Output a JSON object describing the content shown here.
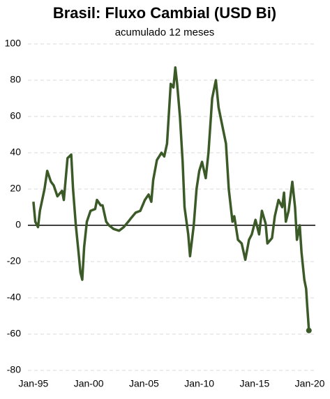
{
  "chart_data": {
    "type": "line",
    "title": "Brasil: Fluxo Cambial (USD Bi)",
    "subtitle": "acumulado 12 meses",
    "x": [
      "1995-01",
      "1995-03",
      "1995-06",
      "1995-08",
      "1996-01",
      "1996-04",
      "1996-08",
      "1996-11",
      "1997-03",
      "1997-08",
      "1997-10",
      "1998-02",
      "1998-06",
      "1998-08",
      "1998-11",
      "1999-02",
      "1999-04",
      "1999-06",
      "1999-08",
      "1999-11",
      "2000-03",
      "2000-08",
      "2000-10",
      "2001-02",
      "2001-04",
      "2001-08",
      "2001-11",
      "2002-04",
      "2002-10",
      "2003-03",
      "2003-08",
      "2003-11",
      "2004-04",
      "2004-09",
      "2005-02",
      "2005-06",
      "2005-09",
      "2005-11",
      "2006-03",
      "2006-08",
      "2006-11",
      "2007-02",
      "2007-06",
      "2007-09",
      "2007-11",
      "2008-01",
      "2008-04",
      "2008-07",
      "2008-09",
      "2009-01",
      "2009-03",
      "2009-07",
      "2009-10",
      "2010-01",
      "2010-04",
      "2010-08",
      "2010-11",
      "2011-03",
      "2011-07",
      "2011-10",
      "2012-02",
      "2012-06",
      "2012-09",
      "2013-01",
      "2013-03",
      "2013-07",
      "2013-11",
      "2014-03",
      "2014-07",
      "2014-10",
      "2015-02",
      "2015-06",
      "2015-09",
      "2016-01",
      "2016-03",
      "2016-08",
      "2016-11",
      "2017-03",
      "2017-07",
      "2017-09",
      "2017-11",
      "2018-02",
      "2018-06",
      "2018-09",
      "2018-11",
      "2019-02",
      "2019-04",
      "2019-07",
      "2019-09",
      "2019-10",
      "2019-12"
    ],
    "series": [
      {
        "name": "Fluxo Cambial",
        "color": "#3b5a27",
        "values": [
          13,
          2,
          -1,
          8,
          20,
          30,
          24,
          22,
          16,
          19,
          14,
          37,
          39,
          20,
          0,
          -15,
          -26,
          -30,
          -12,
          2,
          8,
          9,
          14,
          11,
          11,
          2,
          0,
          -2,
          -3,
          -1,
          2,
          4,
          7,
          8,
          14,
          17,
          13,
          25,
          36,
          40,
          38,
          45,
          78,
          76,
          87,
          78,
          60,
          35,
          10,
          -5,
          -17,
          0,
          20,
          30,
          35,
          26,
          40,
          70,
          80,
          65,
          55,
          45,
          20,
          2,
          5,
          -8,
          -10,
          -19,
          -8,
          -5,
          3,
          -5,
          8,
          1,
          -10,
          -7,
          5,
          14,
          10,
          18,
          2,
          8,
          24,
          10,
          -8,
          0,
          -15,
          -30,
          -35,
          -43,
          -58
        ]
      }
    ],
    "xlim": [
      "1994-07",
      "2020-07"
    ],
    "xticks": [
      {
        "value": "1995-01",
        "label": "Jan-95"
      },
      {
        "value": "2000-01",
        "label": "Jan-00"
      },
      {
        "value": "2005-01",
        "label": "Jan-05"
      },
      {
        "value": "2010-01",
        "label": "Jan-10"
      },
      {
        "value": "2015-01",
        "label": "Jan-15"
      },
      {
        "value": "2020-01",
        "label": "Jan-20"
      }
    ],
    "ylim": [
      -80,
      100
    ],
    "yticks": [
      -80,
      -60,
      -40,
      -20,
      0,
      20,
      40,
      60,
      80,
      100
    ],
    "grid": true,
    "end_marker": true
  }
}
